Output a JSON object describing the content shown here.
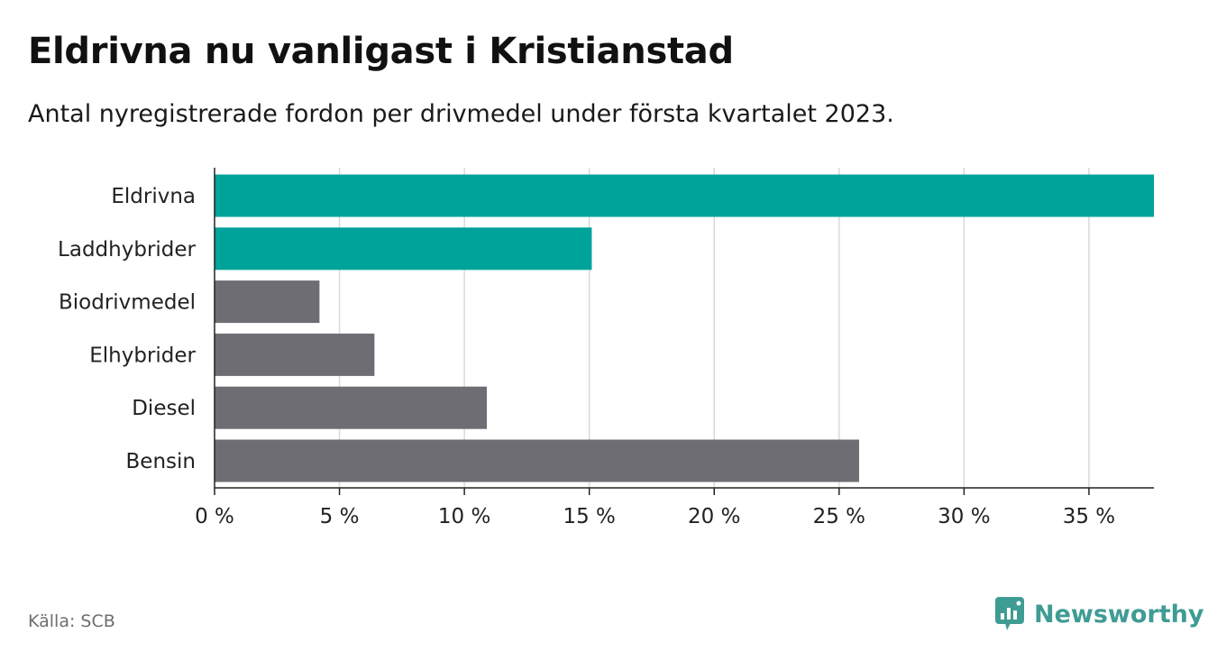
{
  "title": "Eldrivna nu vanligast i Kristianstad",
  "subtitle": "Antal nyregistrerade fordon per drivmedel under första kvartalet 2023.",
  "source": "Källa: SCB",
  "brand": {
    "name": "Newsworthy",
    "icon": "newsworthy-logo-icon",
    "color": "#3f9c94"
  },
  "colors": {
    "highlight": "#00a39a",
    "default": "#6e6d73",
    "grid": "#d9d9d9",
    "axis": "#222222"
  },
  "chart_data": {
    "type": "bar",
    "orientation": "horizontal",
    "categories": [
      "Eldrivna",
      "Laddhybrider",
      "Biodrivmedel",
      "Elhybrider",
      "Diesel",
      "Bensin"
    ],
    "values": [
      37.6,
      15.1,
      4.2,
      6.4,
      10.9,
      25.8
    ],
    "highlighted": [
      true,
      true,
      false,
      false,
      false,
      false
    ],
    "x_ticks": [
      0,
      5,
      10,
      15,
      20,
      25,
      30,
      35
    ],
    "x_tick_labels": [
      "0 %",
      "5 %",
      "10 %",
      "15 %",
      "20 %",
      "25 %",
      "30 %",
      "35 %"
    ],
    "xlim": [
      0,
      37.6
    ],
    "grid": true
  }
}
